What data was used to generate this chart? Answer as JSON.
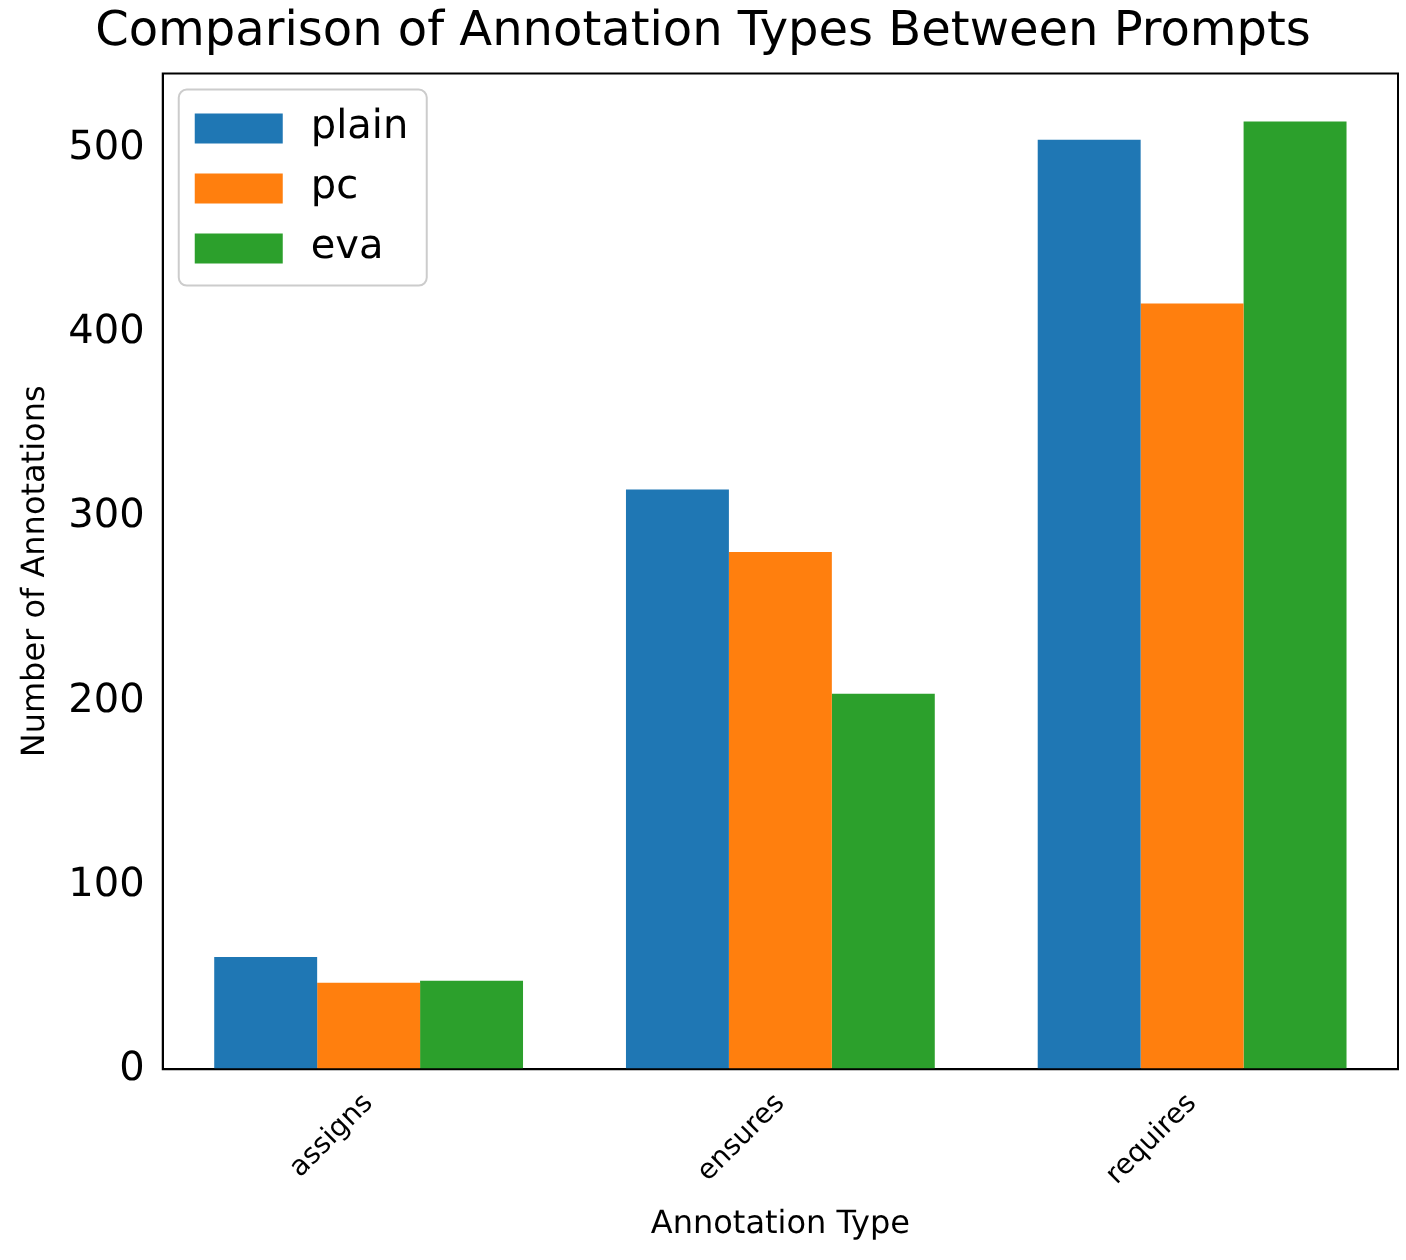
{
  "chart_data": {
    "type": "bar",
    "title": "Comparison of Annotation Types Between Prompts",
    "xlabel": "Annotation Type",
    "ylabel": "Number of Annotations",
    "categories": [
      "assigns",
      "ensures",
      "requires"
    ],
    "series": [
      {
        "name": "plain",
        "color": "#1f77b4",
        "values": [
          61,
          315,
          505
        ]
      },
      {
        "name": "pc",
        "color": "#ff7f0e",
        "values": [
          47,
          281,
          416
        ]
      },
      {
        "name": "eva",
        "color": "#2ca02c",
        "values": [
          48,
          204,
          515
        ]
      }
    ],
    "ylim": [
      0,
      541
    ],
    "yticks": [
      0,
      100,
      200,
      300,
      400,
      500
    ],
    "grid": false,
    "legend": "top left"
  }
}
